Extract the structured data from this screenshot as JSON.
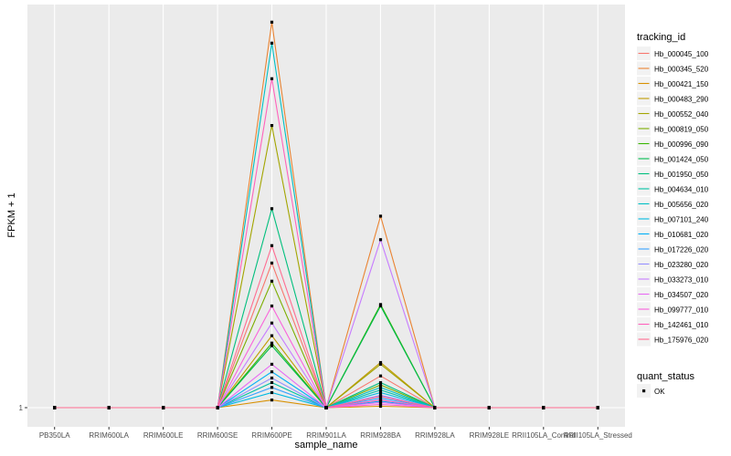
{
  "chart_data": {
    "type": "line",
    "xlabel": "sample_name",
    "ylabel": "FPKM + 1",
    "y_ticks": [
      {
        "value": 1,
        "label": "1"
      }
    ],
    "y_scale": "log",
    "categories": [
      "PB350LA",
      "RRIM600LA",
      "RRIM600LE",
      "RRIM600SE",
      "RRIM600PE",
      "RRIM901LA",
      "RRIM928BA",
      "RRIM928LA",
      "RRIM928LE",
      "RRII105LA_Control",
      "RRII105LA_Stressed"
    ],
    "legend": {
      "title": "tracking_id",
      "position": "right",
      "status_title": "quant_status",
      "status_label": "OK"
    },
    "series": [
      {
        "name": "Hb_000045_100",
        "color": "#F8766D",
        "values": [
          1,
          1,
          1,
          1,
          8.5,
          1,
          1.6,
          1,
          1,
          1,
          1
        ]
      },
      {
        "name": "Hb_000345_520",
        "color": "#EA8331",
        "values": [
          1,
          1,
          1,
          1,
          300,
          1,
          17.0,
          1,
          1,
          1,
          1
        ]
      },
      {
        "name": "Hb_000421_150",
        "color": "#D89000",
        "values": [
          1,
          1,
          1,
          1,
          1.12,
          1,
          1.02,
          1,
          1,
          1,
          1
        ]
      },
      {
        "name": "Hb_000483_290",
        "color": "#C09B00",
        "values": [
          1,
          1,
          1,
          1,
          2.9,
          1,
          1.95,
          1,
          1,
          1,
          1
        ]
      },
      {
        "name": "Hb_000552_040",
        "color": "#A3A500",
        "values": [
          1,
          1,
          1,
          1,
          65,
          1,
          1.9,
          1,
          1,
          1,
          1
        ]
      },
      {
        "name": "Hb_000819_050",
        "color": "#7CAE00",
        "values": [
          1,
          1,
          1,
          1,
          6.5,
          1,
          1.4,
          1,
          1,
          1,
          1
        ]
      },
      {
        "name": "Hb_000996_090",
        "color": "#39B600",
        "values": [
          1,
          1,
          1,
          1,
          2.6,
          1,
          4.6,
          1,
          1,
          1,
          1
        ]
      },
      {
        "name": "Hb_001424_050",
        "color": "#00BB4E",
        "values": [
          1,
          1,
          1,
          1,
          2.5,
          1,
          4.5,
          1,
          1,
          1,
          1
        ]
      },
      {
        "name": "Hb_001950_050",
        "color": "#00BF7D",
        "values": [
          1,
          1,
          1,
          1,
          19,
          1,
          1.45,
          1,
          1,
          1,
          1
        ]
      },
      {
        "name": "Hb_004634_010",
        "color": "#00C1A3",
        "values": [
          1,
          1,
          1,
          1,
          1.45,
          1,
          1.3,
          1,
          1,
          1,
          1
        ]
      },
      {
        "name": "Hb_005656_020",
        "color": "#00BFC4",
        "values": [
          1,
          1,
          1,
          1,
          220,
          1,
          1.35,
          1,
          1,
          1,
          1
        ]
      },
      {
        "name": "Hb_007101_240",
        "color": "#00BAE0",
        "values": [
          1,
          1,
          1,
          1,
          1.25,
          1,
          1.25,
          1,
          1,
          1,
          1
        ]
      },
      {
        "name": "Hb_010681_020",
        "color": "#00B0F6",
        "values": [
          1,
          1,
          1,
          1,
          1.7,
          1,
          1.1,
          1,
          1,
          1,
          1
        ]
      },
      {
        "name": "Hb_017226_020",
        "color": "#35A2FF",
        "values": [
          1,
          1,
          1,
          1,
          1.35,
          1,
          1.15,
          1,
          1,
          1,
          1
        ]
      },
      {
        "name": "Hb_023280_020",
        "color": "#9590FF",
        "values": [
          1,
          1,
          1,
          1,
          1.55,
          1,
          1.2,
          1,
          1,
          1,
          1
        ]
      },
      {
        "name": "Hb_033273_010",
        "color": "#C77CFF",
        "values": [
          1,
          1,
          1,
          1,
          3.5,
          1,
          12.0,
          1,
          1,
          1,
          1
        ]
      },
      {
        "name": "Hb_034507_020",
        "color": "#E76BF3",
        "values": [
          1,
          1,
          1,
          1,
          1.9,
          1,
          1.08,
          1,
          1,
          1,
          1
        ]
      },
      {
        "name": "Hb_099777_010",
        "color": "#FA62DB",
        "values": [
          1,
          1,
          1,
          1,
          4.5,
          1,
          1.05,
          1,
          1,
          1,
          1
        ]
      },
      {
        "name": "Hb_142461_010",
        "color": "#FF62BC",
        "values": [
          1,
          1,
          1,
          1,
          130,
          1,
          1.12,
          1,
          1,
          1,
          1
        ]
      },
      {
        "name": "Hb_175976_020",
        "color": "#FF6C91",
        "values": [
          1,
          1,
          1,
          1,
          11,
          1,
          1.18,
          1,
          1,
          1,
          1
        ]
      }
    ]
  }
}
